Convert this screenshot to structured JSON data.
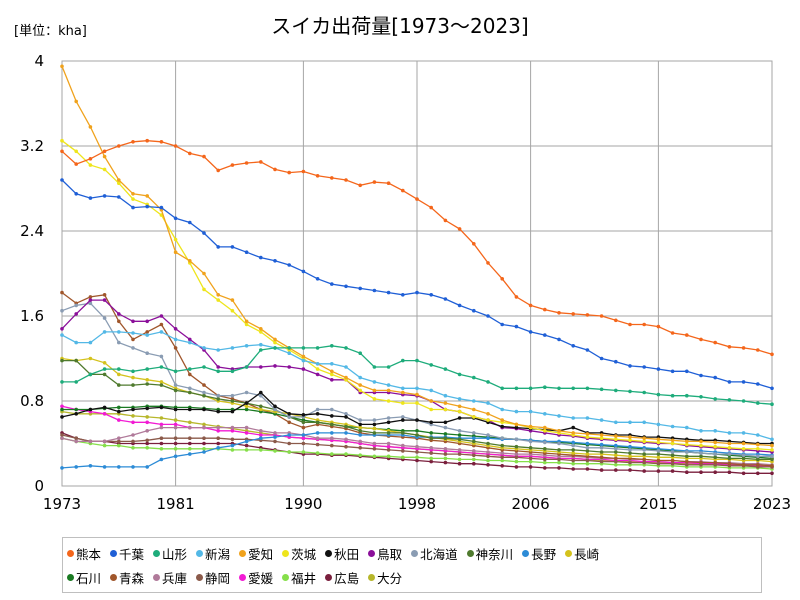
{
  "header": {
    "unit_label": "[単位：kha]",
    "title": "スイカ出荷量[1973～2023]"
  },
  "chart_data": {
    "type": "line",
    "title": "スイカ出荷量[1973～2023]",
    "unit": "[単位：kha]",
    "xlim": [
      1973,
      2023
    ],
    "ylim": [
      0,
      4
    ],
    "x_ticks": [
      "1973",
      "1981",
      "1990",
      "1998",
      "2006",
      "2015",
      "2023"
    ],
    "y_ticks": [
      "0",
      "0.8",
      "1.6",
      "2.4",
      "3.2",
      "4"
    ],
    "grid": true,
    "legend_position": "bottom",
    "x": [
      1973,
      1974,
      1975,
      1976,
      1977,
      1978,
      1979,
      1980,
      1981,
      1982,
      1983,
      1984,
      1985,
      1986,
      1987,
      1988,
      1989,
      1990,
      1991,
      1992,
      1993,
      1994,
      1995,
      1996,
      1997,
      1998,
      1999,
      2000,
      2001,
      2002,
      2003,
      2004,
      2005,
      2006,
      2007,
      2008,
      2009,
      2010,
      2011,
      2012,
      2013,
      2014,
      2015,
      2016,
      2017,
      2018,
      2019,
      2020,
      2021,
      2022,
      2023
    ],
    "series": [
      {
        "name": "熊本",
        "color": "#f4661b",
        "values": [
          3.15,
          3.03,
          3.08,
          3.15,
          3.2,
          3.24,
          3.25,
          3.24,
          3.2,
          3.13,
          3.1,
          2.97,
          3.02,
          3.04,
          3.05,
          2.98,
          2.95,
          2.96,
          2.92,
          2.9,
          2.88,
          2.83,
          2.86,
          2.85,
          2.78,
          2.7,
          2.62,
          2.5,
          2.42,
          2.28,
          2.1,
          1.95,
          1.78,
          1.7,
          1.66,
          1.63,
          1.62,
          1.61,
          1.6,
          1.56,
          1.52,
          1.52,
          1.5,
          1.44,
          1.42,
          1.38,
          1.35,
          1.31,
          1.3,
          1.28,
          1.24
        ]
      },
      {
        "name": "千葉",
        "color": "#1f5fd6",
        "values": [
          2.88,
          2.75,
          2.71,
          2.73,
          2.72,
          2.62,
          2.63,
          2.62,
          2.52,
          2.48,
          2.38,
          2.25,
          2.25,
          2.2,
          2.15,
          2.12,
          2.08,
          2.02,
          1.95,
          1.9,
          1.88,
          1.86,
          1.84,
          1.82,
          1.8,
          1.82,
          1.8,
          1.76,
          1.7,
          1.65,
          1.6,
          1.52,
          1.5,
          1.45,
          1.42,
          1.38,
          1.32,
          1.28,
          1.2,
          1.17,
          1.13,
          1.12,
          1.1,
          1.08,
          1.08,
          1.04,
          1.02,
          0.98,
          0.98,
          0.96,
          0.92
        ]
      },
      {
        "name": "山形",
        "color": "#1eac7b",
        "values": [
          0.98,
          0.98,
          1.05,
          1.1,
          1.1,
          1.08,
          1.1,
          1.12,
          1.08,
          1.1,
          1.12,
          1.08,
          1.08,
          1.12,
          1.28,
          1.3,
          1.3,
          1.3,
          1.3,
          1.32,
          1.3,
          1.25,
          1.12,
          1.12,
          1.18,
          1.18,
          1.14,
          1.1,
          1.05,
          1.02,
          0.98,
          0.92,
          0.92,
          0.92,
          0.93,
          0.92,
          0.92,
          0.92,
          0.91,
          0.9,
          0.89,
          0.88,
          0.86,
          0.85,
          0.85,
          0.84,
          0.82,
          0.81,
          0.8,
          0.78,
          0.77
        ]
      },
      {
        "name": "新潟",
        "color": "#53b8e6",
        "values": [
          1.42,
          1.35,
          1.35,
          1.45,
          1.45,
          1.44,
          1.42,
          1.45,
          1.38,
          1.35,
          1.3,
          1.28,
          1.3,
          1.32,
          1.33,
          1.3,
          1.25,
          1.18,
          1.15,
          1.15,
          1.12,
          1.02,
          0.98,
          0.95,
          0.92,
          0.92,
          0.9,
          0.85,
          0.82,
          0.8,
          0.78,
          0.72,
          0.7,
          0.7,
          0.68,
          0.66,
          0.64,
          0.64,
          0.62,
          0.6,
          0.6,
          0.6,
          0.58,
          0.56,
          0.55,
          0.52,
          0.52,
          0.5,
          0.5,
          0.48,
          0.44
        ]
      },
      {
        "name": "愛知",
        "color": "#f0a21c",
        "values": [
          3.95,
          3.62,
          3.38,
          3.1,
          2.88,
          2.75,
          2.73,
          2.6,
          2.2,
          2.12,
          2.0,
          1.8,
          1.75,
          1.55,
          1.48,
          1.38,
          1.3,
          1.22,
          1.15,
          1.08,
          1.02,
          0.95,
          0.9,
          0.9,
          0.88,
          0.86,
          0.8,
          0.78,
          0.75,
          0.72,
          0.68,
          0.62,
          0.58,
          0.56,
          0.55,
          0.52,
          0.5,
          0.49,
          0.48,
          0.47,
          0.46,
          0.45,
          0.44,
          0.43,
          0.42,
          0.42,
          0.41,
          0.4,
          0.4,
          0.39,
          0.38
        ]
      },
      {
        "name": "茨城",
        "color": "#eee51c",
        "values": [
          3.25,
          3.15,
          3.02,
          2.98,
          2.85,
          2.7,
          2.65,
          2.55,
          2.32,
          2.1,
          1.85,
          1.75,
          1.65,
          1.52,
          1.45,
          1.35,
          1.28,
          1.2,
          1.1,
          1.05,
          1.0,
          0.9,
          0.82,
          0.8,
          0.78,
          0.78,
          0.72,
          0.72,
          0.7,
          0.65,
          0.62,
          0.6,
          0.58,
          0.55,
          0.52,
          0.5,
          0.48,
          0.46,
          0.45,
          0.44,
          0.43,
          0.42,
          0.41,
          0.4,
          0.39,
          0.38,
          0.37,
          0.36,
          0.35,
          0.35,
          0.34
        ]
      },
      {
        "name": "秋田",
        "color": "#111111",
        "values": [
          0.65,
          0.68,
          0.72,
          0.74,
          0.7,
          0.72,
          0.73,
          0.74,
          0.72,
          0.72,
          0.72,
          0.7,
          0.7,
          0.78,
          0.88,
          0.75,
          0.68,
          0.67,
          0.68,
          0.66,
          0.65,
          0.58,
          0.58,
          0.6,
          0.62,
          0.62,
          0.6,
          0.6,
          0.64,
          0.64,
          0.6,
          0.56,
          0.55,
          0.54,
          0.53,
          0.52,
          0.55,
          0.5,
          0.5,
          0.48,
          0.48,
          0.46,
          0.46,
          0.45,
          0.44,
          0.43,
          0.43,
          0.42,
          0.41,
          0.4,
          0.4
        ]
      },
      {
        "name": "鳥取",
        "color": "#8b0f9a",
        "values": [
          1.48,
          1.62,
          1.75,
          1.75,
          1.62,
          1.55,
          1.55,
          1.6,
          1.48,
          1.38,
          1.28,
          1.12,
          1.1,
          1.12,
          1.12,
          1.13,
          1.12,
          1.1,
          1.05,
          1.0,
          1.0,
          0.88,
          0.88,
          0.88,
          0.86,
          0.85,
          0.8,
          0.72,
          0.7,
          0.65,
          0.62,
          0.55,
          0.54,
          0.52,
          0.5,
          0.48,
          0.47,
          0.45,
          0.44,
          0.43,
          0.42,
          0.41,
          0.4,
          0.4,
          0.38,
          0.37,
          0.36,
          0.35,
          0.34,
          0.33,
          0.32
        ]
      },
      {
        "name": "北海道",
        "color": "#8a9cb3",
        "values": [
          1.65,
          1.7,
          1.72,
          1.58,
          1.35,
          1.3,
          1.25,
          1.22,
          0.95,
          0.92,
          0.88,
          0.85,
          0.85,
          0.88,
          0.85,
          0.72,
          0.65,
          0.65,
          0.72,
          0.72,
          0.68,
          0.62,
          0.62,
          0.64,
          0.65,
          0.62,
          0.58,
          0.55,
          0.52,
          0.5,
          0.48,
          0.45,
          0.44,
          0.42,
          0.41,
          0.4,
          0.38,
          0.36,
          0.36,
          0.35,
          0.34,
          0.34,
          0.33,
          0.32,
          0.32,
          0.31,
          0.3,
          0.3,
          0.29,
          0.28,
          0.28
        ]
      },
      {
        "name": "神奈川",
        "color": "#4f7a2e",
        "values": [
          1.18,
          1.18,
          1.05,
          1.05,
          0.95,
          0.95,
          0.96,
          0.95,
          0.9,
          0.88,
          0.85,
          0.82,
          0.8,
          0.78,
          0.75,
          0.72,
          0.65,
          0.6,
          0.6,
          0.58,
          0.56,
          0.52,
          0.5,
          0.5,
          0.5,
          0.48,
          0.45,
          0.45,
          0.44,
          0.42,
          0.4,
          0.38,
          0.37,
          0.36,
          0.35,
          0.34,
          0.34,
          0.33,
          0.32,
          0.32,
          0.31,
          0.3,
          0.3,
          0.29,
          0.28,
          0.28,
          0.27,
          0.26,
          0.26,
          0.25,
          0.25
        ]
      },
      {
        "name": "長野",
        "color": "#2c8bd6",
        "values": [
          0.17,
          0.18,
          0.19,
          0.18,
          0.18,
          0.18,
          0.18,
          0.25,
          0.28,
          0.3,
          0.32,
          0.36,
          0.38,
          0.42,
          0.45,
          0.46,
          0.48,
          0.48,
          0.5,
          0.5,
          0.5,
          0.48,
          0.48,
          0.48,
          0.48,
          0.46,
          0.46,
          0.46,
          0.45,
          0.45,
          0.45,
          0.44,
          0.44,
          0.43,
          0.42,
          0.42,
          0.41,
          0.4,
          0.39,
          0.38,
          0.37,
          0.36,
          0.35,
          0.34,
          0.33,
          0.33,
          0.32,
          0.31,
          0.3,
          0.3,
          0.29
        ]
      },
      {
        "name": "長崎",
        "color": "#d4c21c",
        "values": [
          1.2,
          1.18,
          1.2,
          1.16,
          1.05,
          1.02,
          1.0,
          0.98,
          0.92,
          0.88,
          0.85,
          0.8,
          0.78,
          0.75,
          0.72,
          0.7,
          0.68,
          0.65,
          0.62,
          0.6,
          0.58,
          0.55,
          0.54,
          0.52,
          0.5,
          0.48,
          0.46,
          0.44,
          0.42,
          0.4,
          0.38,
          0.36,
          0.35,
          0.34,
          0.33,
          0.32,
          0.31,
          0.3,
          0.3,
          0.29,
          0.28,
          0.28,
          0.27,
          0.27,
          0.26,
          0.26,
          0.25,
          0.25,
          0.24,
          0.24,
          0.23
        ]
      },
      {
        "name": "石川",
        "color": "#1a7a22",
        "values": [
          0.72,
          0.72,
          0.72,
          0.73,
          0.74,
          0.74,
          0.75,
          0.75,
          0.74,
          0.74,
          0.73,
          0.72,
          0.72,
          0.72,
          0.7,
          0.68,
          0.65,
          0.62,
          0.6,
          0.58,
          0.56,
          0.55,
          0.54,
          0.53,
          0.52,
          0.52,
          0.5,
          0.49,
          0.48,
          0.47,
          0.46,
          0.45,
          0.44,
          0.43,
          0.42,
          0.41,
          0.4,
          0.39,
          0.38,
          0.37,
          0.36,
          0.35,
          0.34,
          0.33,
          0.32,
          0.31,
          0.3,
          0.29,
          0.28,
          0.27,
          0.26
        ]
      },
      {
        "name": "青森",
        "color": "#a0562b",
        "values": [
          1.82,
          1.72,
          1.78,
          1.8,
          1.55,
          1.38,
          1.45,
          1.52,
          1.3,
          1.05,
          0.95,
          0.85,
          0.82,
          0.78,
          0.72,
          0.68,
          0.6,
          0.55,
          0.58,
          0.56,
          0.54,
          0.5,
          0.48,
          0.47,
          0.46,
          0.45,
          0.43,
          0.42,
          0.4,
          0.38,
          0.36,
          0.34,
          0.33,
          0.32,
          0.31,
          0.3,
          0.29,
          0.28,
          0.27,
          0.26,
          0.26,
          0.25,
          0.24,
          0.24,
          0.23,
          0.22,
          0.22,
          0.21,
          0.2,
          0.2,
          0.19
        ]
      },
      {
        "name": "兵庫",
        "color": "#b07a9a",
        "values": [
          0.45,
          0.42,
          0.42,
          0.42,
          0.45,
          0.48,
          0.52,
          0.55,
          0.55,
          0.55,
          0.55,
          0.55,
          0.55,
          0.55,
          0.52,
          0.5,
          0.5,
          0.48,
          0.45,
          0.45,
          0.44,
          0.42,
          0.4,
          0.4,
          0.38,
          0.37,
          0.36,
          0.35,
          0.34,
          0.33,
          0.32,
          0.31,
          0.3,
          0.3,
          0.29,
          0.28,
          0.28,
          0.27,
          0.26,
          0.26,
          0.25,
          0.25,
          0.24,
          0.24,
          0.23,
          0.23,
          0.22,
          0.22,
          0.21,
          0.21,
          0.2
        ]
      },
      {
        "name": "静岡",
        "color": "#8b5a4a",
        "values": [
          0.48,
          0.45,
          0.42,
          0.42,
          0.42,
          0.42,
          0.43,
          0.45,
          0.45,
          0.45,
          0.45,
          0.45,
          0.44,
          0.44,
          0.43,
          0.42,
          0.4,
          0.4,
          0.39,
          0.38,
          0.37,
          0.36,
          0.35,
          0.34,
          0.33,
          0.32,
          0.31,
          0.3,
          0.3,
          0.29,
          0.28,
          0.27,
          0.27,
          0.26,
          0.25,
          0.25,
          0.24,
          0.24,
          0.23,
          0.23,
          0.22,
          0.22,
          0.21,
          0.21,
          0.2,
          0.2,
          0.2,
          0.19,
          0.19,
          0.18,
          0.18
        ]
      },
      {
        "name": "愛媛",
        "color": "#f21bd4",
        "values": [
          0.75,
          0.72,
          0.7,
          0.68,
          0.62,
          0.6,
          0.6,
          0.58,
          0.58,
          0.55,
          0.55,
          0.52,
          0.52,
          0.5,
          0.48,
          0.48,
          0.46,
          0.45,
          0.44,
          0.43,
          0.42,
          0.4,
          0.38,
          0.37,
          0.36,
          0.35,
          0.34,
          0.33,
          0.32,
          0.31,
          0.3,
          0.29,
          0.28,
          0.28,
          0.27,
          0.26,
          0.26,
          0.25,
          0.25,
          0.24,
          0.24,
          0.23,
          0.23,
          0.22,
          0.22,
          0.21,
          0.21,
          0.2,
          0.2,
          0.19,
          0.18
        ]
      },
      {
        "name": "福井",
        "color": "#86df4a",
        "values": [
          0.45,
          0.42,
          0.4,
          0.38,
          0.38,
          0.36,
          0.36,
          0.35,
          0.35,
          0.35,
          0.35,
          0.35,
          0.34,
          0.34,
          0.34,
          0.33,
          0.32,
          0.32,
          0.31,
          0.3,
          0.3,
          0.29,
          0.28,
          0.28,
          0.27,
          0.27,
          0.26,
          0.26,
          0.25,
          0.25,
          0.24,
          0.24,
          0.23,
          0.23,
          0.22,
          0.22,
          0.21,
          0.21,
          0.21,
          0.2,
          0.2,
          0.2,
          0.19,
          0.19,
          0.18,
          0.18,
          0.18,
          0.17,
          0.17,
          0.17,
          0.16
        ]
      },
      {
        "name": "広島",
        "color": "#7a1f3d",
        "values": [
          0.5,
          0.45,
          0.42,
          0.42,
          0.4,
          0.4,
          0.4,
          0.4,
          0.4,
          0.4,
          0.4,
          0.4,
          0.4,
          0.38,
          0.36,
          0.34,
          0.32,
          0.3,
          0.3,
          0.29,
          0.29,
          0.28,
          0.27,
          0.26,
          0.25,
          0.24,
          0.23,
          0.22,
          0.21,
          0.21,
          0.2,
          0.19,
          0.18,
          0.18,
          0.17,
          0.17,
          0.16,
          0.16,
          0.15,
          0.15,
          0.15,
          0.14,
          0.14,
          0.14,
          0.13,
          0.13,
          0.13,
          0.13,
          0.12,
          0.12,
          0.12
        ]
      },
      {
        "name": "大分",
        "color": "#b7b72b",
        "values": [
          0.7,
          0.68,
          0.68,
          0.68,
          0.68,
          0.66,
          0.65,
          0.64,
          0.62,
          0.6,
          0.58,
          0.56,
          0.54,
          0.52,
          0.5,
          0.48,
          0.46,
          0.45,
          0.44,
          0.43,
          0.42,
          0.4,
          0.38,
          0.37,
          0.36,
          0.35,
          0.34,
          0.33,
          0.32,
          0.31,
          0.3,
          0.29,
          0.28,
          0.28,
          0.27,
          0.26,
          0.26,
          0.25,
          0.24,
          0.24,
          0.23,
          0.23,
          0.22,
          0.22,
          0.21,
          0.21,
          0.2,
          0.2,
          0.19,
          0.19,
          0.18
        ]
      }
    ]
  }
}
